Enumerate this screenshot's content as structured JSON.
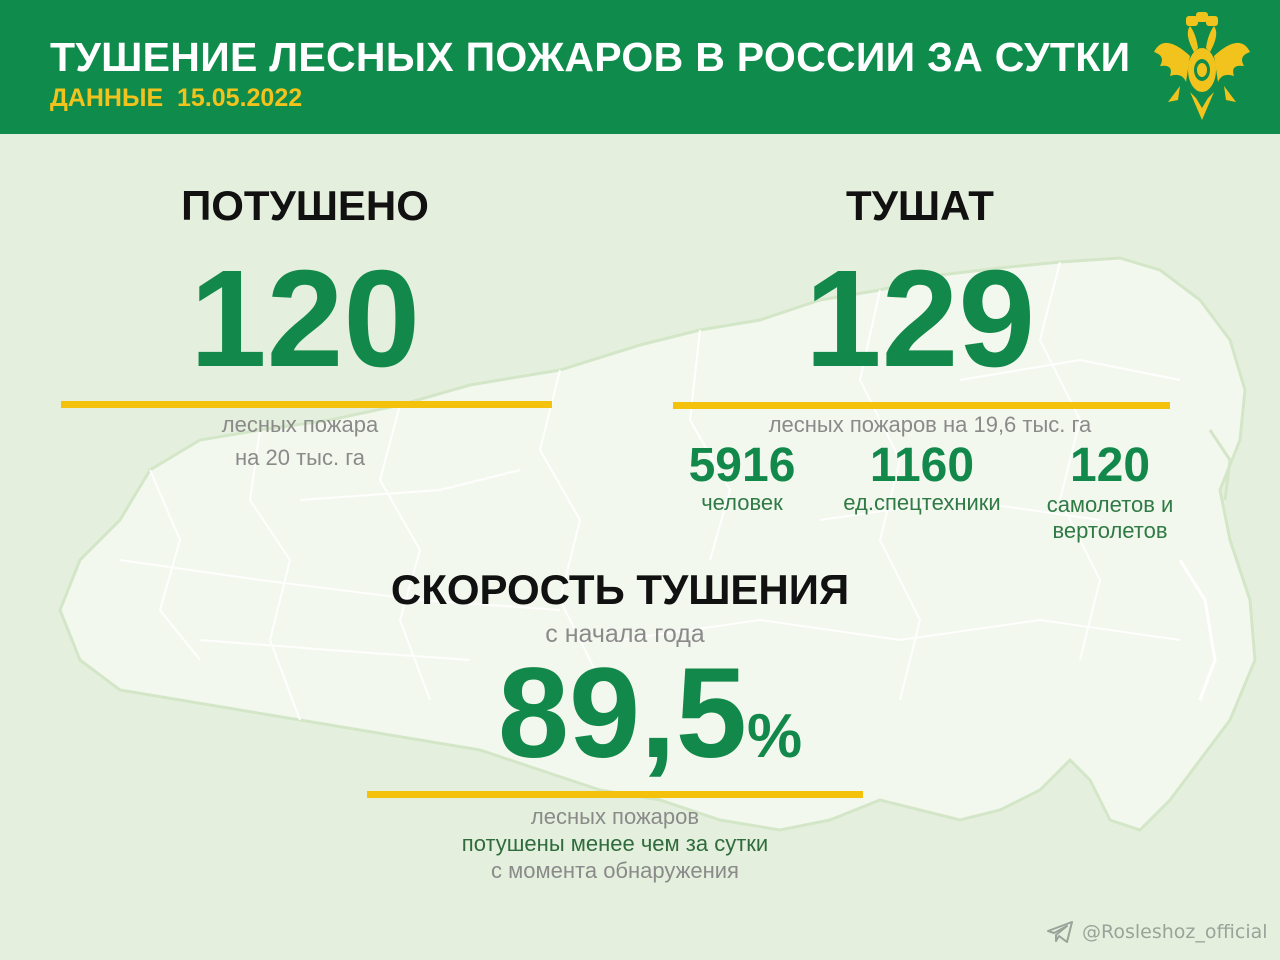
{
  "header": {
    "title": "ТУШЕНИЕ ЛЕСНЫХ ПОЖАРОВ В РОССИИ ЗА СУТКИ",
    "date": "ДАННЫЕ  15.05.2022",
    "emblem_icon": "double-headed-eagle-emblem"
  },
  "extinguished": {
    "heading": "ПОТУШЕНО",
    "value": "120",
    "caption_line1": "лесных пожара",
    "caption_line2": "на 20 тыс. га"
  },
  "ongoing": {
    "heading": "ТУШАТ",
    "value": "129",
    "caption": "лесных пожаров на 19,6 тыс. га",
    "resources": [
      {
        "value": "5916",
        "label_line1": "человек",
        "label_line2": ""
      },
      {
        "value": "1160",
        "label_line1": "ед.спецтехники",
        "label_line2": ""
      },
      {
        "value": "120",
        "label_line1": "самолетов и",
        "label_line2": "вертолетов"
      }
    ]
  },
  "speed": {
    "heading": "СКОРОСТЬ ТУШЕНИЯ",
    "subheading": "с начала года",
    "value": "89,5",
    "unit": "%",
    "caption_line1": "лесных пожаров",
    "caption_line2": "потушены менее чем за сутки",
    "caption_line3": "с момента обнаружения"
  },
  "watermark": {
    "icon": "telegram-icon",
    "handle": "@Rosleshoz_official"
  },
  "colors": {
    "header_bg": "#0f8b4c",
    "accent_yellow": "#f4c20d",
    "number_green": "#12894a",
    "background": "#e4f0dd"
  }
}
